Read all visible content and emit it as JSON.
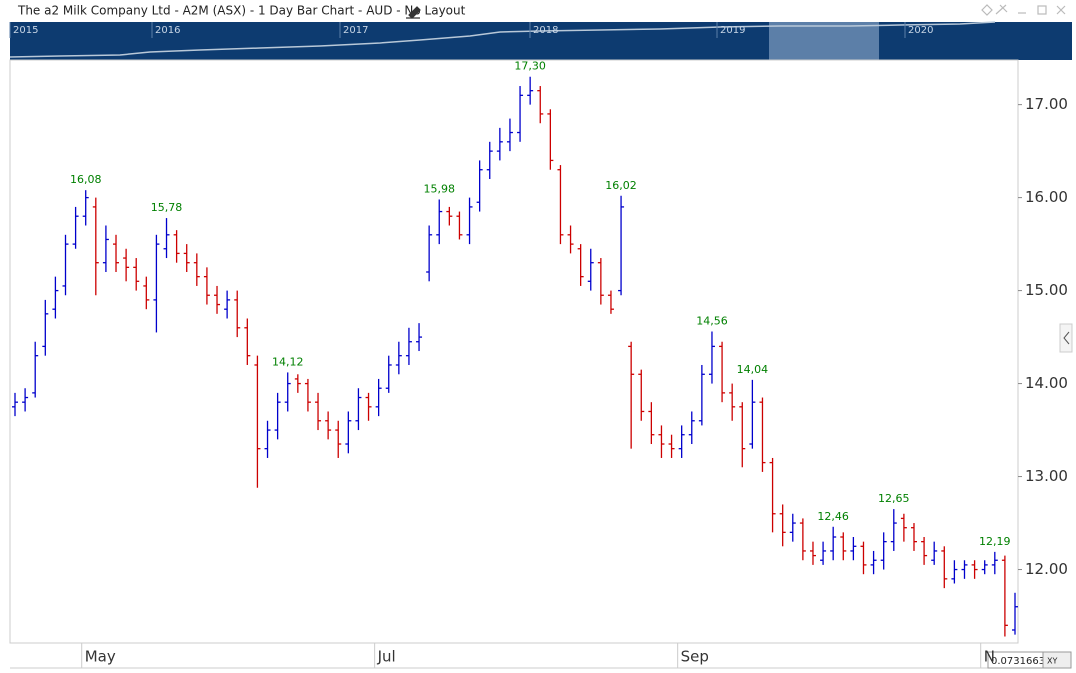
{
  "header": {
    "title": "The a2 Milk Company Ltd - A2M (ASX) - 1 Day Bar Chart - AUD - No Layout"
  },
  "navigator": {
    "years": [
      "2015",
      "2016",
      "2017",
      "2018",
      "2019",
      "2020"
    ]
  },
  "readout": {
    "value": "0.0731663",
    "mode": "XY"
  },
  "chart_data": {
    "type": "ohlc",
    "categories": [
      null,
      null,
      null,
      null,
      null,
      null,
      null,
      "May",
      null,
      null,
      null,
      null,
      null,
      null,
      null,
      null,
      null,
      null,
      null,
      null,
      null,
      null,
      null,
      null,
      null,
      null,
      null,
      null,
      null,
      null,
      null,
      null,
      null,
      null,
      null,
      null,
      "Jul",
      null,
      null,
      null,
      null,
      null,
      null,
      null,
      null,
      null,
      null,
      null,
      null,
      null,
      null,
      null,
      null,
      null,
      null,
      null,
      null,
      null,
      null,
      null,
      null,
      null,
      null,
      null,
      null,
      null,
      "Sep",
      null,
      null,
      null,
      null,
      null,
      null,
      null,
      null,
      null,
      null,
      null,
      null,
      null,
      null,
      null,
      null,
      null,
      null,
      null,
      null,
      null,
      null,
      null,
      null,
      null,
      null,
      null,
      null,
      null,
      "N",
      null,
      null,
      null
    ],
    "open": [
      13.75,
      13.8,
      13.9,
      14.4,
      14.8,
      15.05,
      15.5,
      15.8,
      15.9,
      15.3,
      15.5,
      15.35,
      15.25,
      15.05,
      14.9,
      15.45,
      15.6,
      15.4,
      15.3,
      15.15,
      14.95,
      14.8,
      14.9,
      14.6,
      14.2,
      13.3,
      13.5,
      13.8,
      14.05,
      14.0,
      13.8,
      13.6,
      13.5,
      13.35,
      13.6,
      13.85,
      13.75,
      13.95,
      14.2,
      14.3,
      14.45,
      15.2,
      15.6,
      15.85,
      15.8,
      15.6,
      15.95,
      16.3,
      16.5,
      16.6,
      16.7,
      17.1,
      17.15,
      16.9,
      16.3,
      15.6,
      15.45,
      15.1,
      15.3,
      14.95,
      15.0,
      14.4,
      14.1,
      13.7,
      13.45,
      13.35,
      13.3,
      13.45,
      13.6,
      14.1,
      14.4,
      13.9,
      13.75,
      13.35,
      13.8,
      13.15,
      12.6,
      12.4,
      12.5,
      12.2,
      12.1,
      12.2,
      12.35,
      12.2,
      12.25,
      12.05,
      12.1,
      12.3,
      12.55,
      12.45,
      12.3,
      12.1,
      12.2,
      11.9,
      12.0,
      12.05,
      12.0,
      12.05,
      12.1,
      11.35
    ],
    "high": [
      13.9,
      13.95,
      14.45,
      14.9,
      15.15,
      15.6,
      15.9,
      16.08,
      16.0,
      15.7,
      15.6,
      15.45,
      15.35,
      15.15,
      15.6,
      15.78,
      15.65,
      15.5,
      15.4,
      15.25,
      15.05,
      15.0,
      15.0,
      14.7,
      14.3,
      13.6,
      13.9,
      14.12,
      14.1,
      14.05,
      13.9,
      13.7,
      13.6,
      13.7,
      13.95,
      13.9,
      14.05,
      14.3,
      14.45,
      14.6,
      14.65,
      15.7,
      15.98,
      15.9,
      15.85,
      16.0,
      16.4,
      16.6,
      16.75,
      16.85,
      17.2,
      17.3,
      17.2,
      16.95,
      16.35,
      15.7,
      15.5,
      15.45,
      15.35,
      15.0,
      16.02,
      14.45,
      14.15,
      13.8,
      13.55,
      13.45,
      13.55,
      13.7,
      14.2,
      14.56,
      14.45,
      14.0,
      13.8,
      14.04,
      13.85,
      13.2,
      12.7,
      12.6,
      12.55,
      12.3,
      12.3,
      12.46,
      12.4,
      12.35,
      12.3,
      12.2,
      12.4,
      12.65,
      12.6,
      12.5,
      12.35,
      12.3,
      12.25,
      12.1,
      12.1,
      12.1,
      12.1,
      12.19,
      12.15,
      11.75
    ],
    "low": [
      13.65,
      13.7,
      13.85,
      14.3,
      14.7,
      14.95,
      15.45,
      15.7,
      14.95,
      15.2,
      15.2,
      15.1,
      15.0,
      14.8,
      14.55,
      15.35,
      15.3,
      15.2,
      15.05,
      14.85,
      14.75,
      14.7,
      14.5,
      14.2,
      12.88,
      13.2,
      13.4,
      13.7,
      13.9,
      13.7,
      13.5,
      13.4,
      13.2,
      13.25,
      13.5,
      13.6,
      13.65,
      13.9,
      14.1,
      14.2,
      14.35,
      15.1,
      15.5,
      15.7,
      15.55,
      15.5,
      15.85,
      16.2,
      16.4,
      16.5,
      16.6,
      17.0,
      16.8,
      16.3,
      15.5,
      15.4,
      15.05,
      15.0,
      14.85,
      14.75,
      14.95,
      13.3,
      13.6,
      13.35,
      13.2,
      13.2,
      13.2,
      13.35,
      13.55,
      14.0,
      13.8,
      13.6,
      13.1,
      13.3,
      13.05,
      12.4,
      12.25,
      12.3,
      12.1,
      12.05,
      12.05,
      12.1,
      12.1,
      12.1,
      11.95,
      11.95,
      12.0,
      12.2,
      12.3,
      12.2,
      12.05,
      12.05,
      11.8,
      11.85,
      11.9,
      11.9,
      11.95,
      11.95,
      11.28,
      11.3
    ],
    "close": [
      13.8,
      13.85,
      14.3,
      14.75,
      15.0,
      15.5,
      15.8,
      16.0,
      15.3,
      15.55,
      15.3,
      15.25,
      15.1,
      14.9,
      15.5,
      15.6,
      15.4,
      15.3,
      15.15,
      14.95,
      14.85,
      14.9,
      14.6,
      14.3,
      13.3,
      13.5,
      13.8,
      14.0,
      14.0,
      13.8,
      13.6,
      13.5,
      13.35,
      13.6,
      13.85,
      13.75,
      13.95,
      14.2,
      14.3,
      14.45,
      14.5,
      15.6,
      15.85,
      15.8,
      15.6,
      15.9,
      16.3,
      16.5,
      16.6,
      16.7,
      17.1,
      17.15,
      16.9,
      16.4,
      15.6,
      15.5,
      15.15,
      15.3,
      14.95,
      14.8,
      15.9,
      14.1,
      13.7,
      13.45,
      13.35,
      13.3,
      13.45,
      13.6,
      14.1,
      14.4,
      13.9,
      13.75,
      13.3,
      13.8,
      13.15,
      12.6,
      12.4,
      12.5,
      12.2,
      12.15,
      12.2,
      12.35,
      12.2,
      12.25,
      12.05,
      12.1,
      12.3,
      12.5,
      12.45,
      12.3,
      12.15,
      12.2,
      11.9,
      12.0,
      12.05,
      12.0,
      12.05,
      12.1,
      11.4,
      11.6
    ],
    "up_color": "#0000cc",
    "down_color": "#cc0000",
    "annotation_color": "#008000",
    "annotations": [
      {
        "bar": 7,
        "label": "16,08"
      },
      {
        "bar": 15,
        "label": "15,78"
      },
      {
        "bar": 27,
        "label": "14,12"
      },
      {
        "bar": 42,
        "label": "15,98"
      },
      {
        "bar": 51,
        "label": "17,30"
      },
      {
        "bar": 60,
        "label": "16,02"
      },
      {
        "bar": 69,
        "label": "14,56"
      },
      {
        "bar": 73,
        "label": "14,04"
      },
      {
        "bar": 81,
        "label": "12,46"
      },
      {
        "bar": 87,
        "label": "12,65"
      },
      {
        "bar": 97,
        "label": "12,19"
      }
    ],
    "ylim": [
      11.21,
      17.48
    ],
    "yticks": [
      {
        "value": 12,
        "label": "12.00"
      },
      {
        "value": 13,
        "label": "13.00"
      },
      {
        "value": 14,
        "label": "14.00"
      },
      {
        "value": 15,
        "label": "15.00"
      },
      {
        "value": 16,
        "label": "16.00"
      },
      {
        "value": 17,
        "label": "17.00"
      }
    ],
    "y_axis_side": "right"
  }
}
